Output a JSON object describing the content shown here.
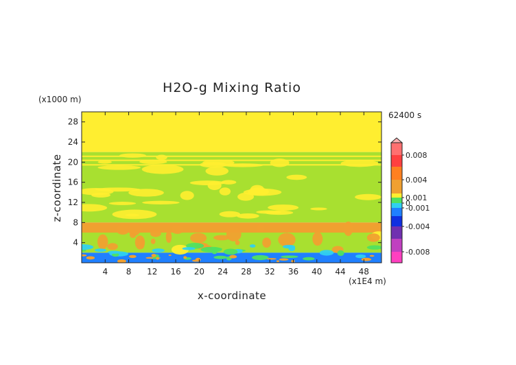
{
  "chart_data": {
    "type": "heatmap",
    "title": "H2O-g Mixing Ratio",
    "xlabel": "x-coordinate",
    "ylabel": "z-coordinate",
    "x_unit": "(x1E4 m)",
    "y_unit": "(x1000 m)",
    "time_label": "62400 s",
    "xlim": [
      0,
      51
    ],
    "ylim": [
      0,
      30
    ],
    "x_ticks": [
      4,
      8,
      12,
      16,
      20,
      24,
      28,
      32,
      36,
      40,
      44,
      48
    ],
    "y_ticks": [
      4,
      8,
      12,
      16,
      20,
      24,
      28
    ],
    "colorbar": {
      "levels": [
        -0.01,
        -0.008,
        -0.006,
        -0.004,
        -0.002,
        -0.001,
        0,
        0.001,
        0.002,
        0.004,
        0.006,
        0.008,
        0.01
      ],
      "colors": [
        "#ff40c0",
        "#c040c0",
        "#7030b0",
        "#1030e0",
        "#2080ff",
        "#30d0f0",
        "#50e060",
        "#ffee30",
        "#f0a030",
        "#ff8020",
        "#ff4040",
        "#ff7070",
        "#ffb0b0"
      ],
      "tick_labels": [
        "0.008",
        "0.004",
        "0.001",
        "0",
        "-0.001",
        "-0.004",
        "-0.008"
      ],
      "tick_values": [
        0.008,
        0.004,
        0.001,
        0,
        -0.001,
        -0.004,
        -0.008
      ]
    },
    "regions": [
      {
        "z_range": [
          22,
          30
        ],
        "value": 0.0005,
        "color": "#ffee30"
      },
      {
        "z_range": [
          8,
          22
        ],
        "value": -0.0002,
        "color": "#a8e030",
        "note_mixed": "#ffee30"
      },
      {
        "z_range": [
          6,
          8
        ],
        "value": 0.003,
        "color": "#f0a030"
      },
      {
        "z_range": [
          2,
          6
        ],
        "value": 0.0,
        "color": "#a8e030"
      },
      {
        "z_range": [
          0,
          2
        ],
        "value": -0.002,
        "color": "#2080ff"
      }
    ]
  }
}
